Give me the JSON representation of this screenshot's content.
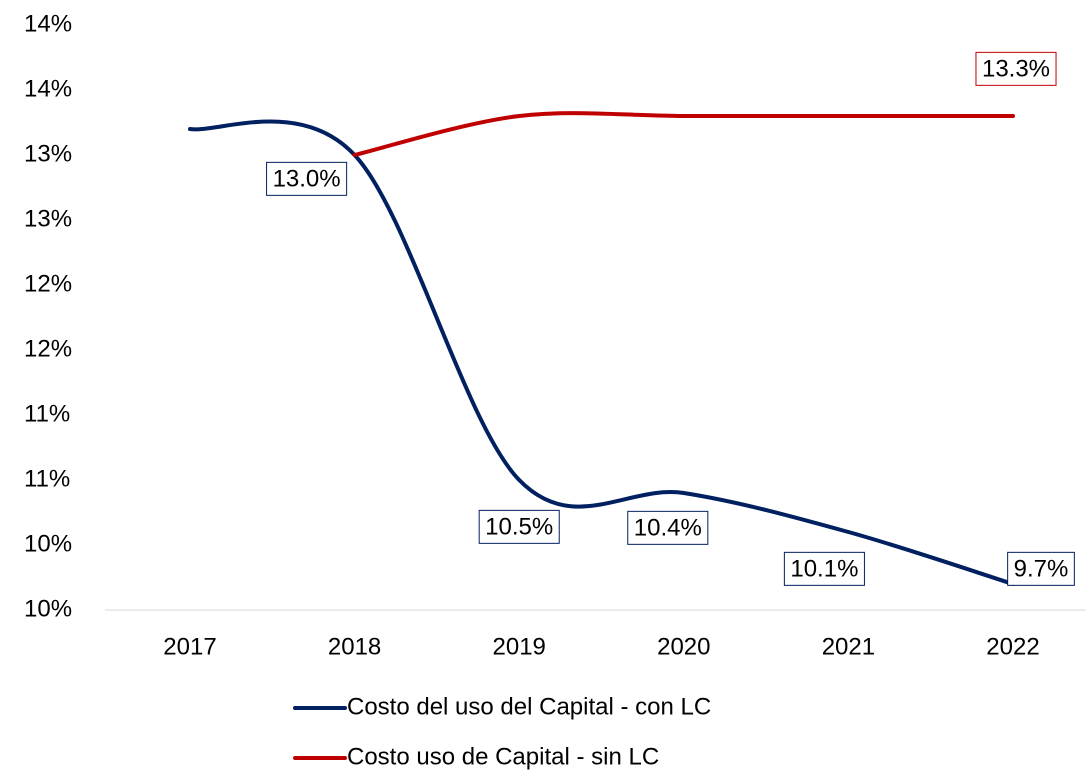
{
  "chart_data": {
    "type": "line",
    "categories": [
      "2017",
      "2018",
      "2019",
      "2020",
      "2021",
      "2022"
    ],
    "series": [
      {
        "name": "Costo del uso del Capital - con LC",
        "color": "#002060",
        "values": [
          13.2,
          13.0,
          10.5,
          10.4,
          10.1,
          9.7
        ],
        "value_labels": [
          null,
          "13.0%",
          "10.5%",
          "10.4%",
          "10.1%",
          "9.7%"
        ]
      },
      {
        "name": "Costo uso de Capital - sin LC",
        "color": "#c00000",
        "values": [
          null,
          13.0,
          13.3,
          13.3,
          13.3,
          13.3
        ],
        "value_labels": [
          null,
          null,
          null,
          null,
          null,
          "13.3%"
        ]
      }
    ],
    "ylim": [
      9.5,
      14.0
    ],
    "yticks": [
      {
        "value": 9.5,
        "label": "10%"
      },
      {
        "value": 10.0,
        "label": "10%"
      },
      {
        "value": 10.5,
        "label": "11%"
      },
      {
        "value": 11.0,
        "label": "11%"
      },
      {
        "value": 11.5,
        "label": "12%"
      },
      {
        "value": 12.0,
        "label": "12%"
      },
      {
        "value": 12.5,
        "label": "13%"
      },
      {
        "value": 13.0,
        "label": "13%"
      },
      {
        "value": 13.5,
        "label": "14%"
      },
      {
        "value": 14.0,
        "label": "14%"
      }
    ],
    "legend": "bottom"
  }
}
